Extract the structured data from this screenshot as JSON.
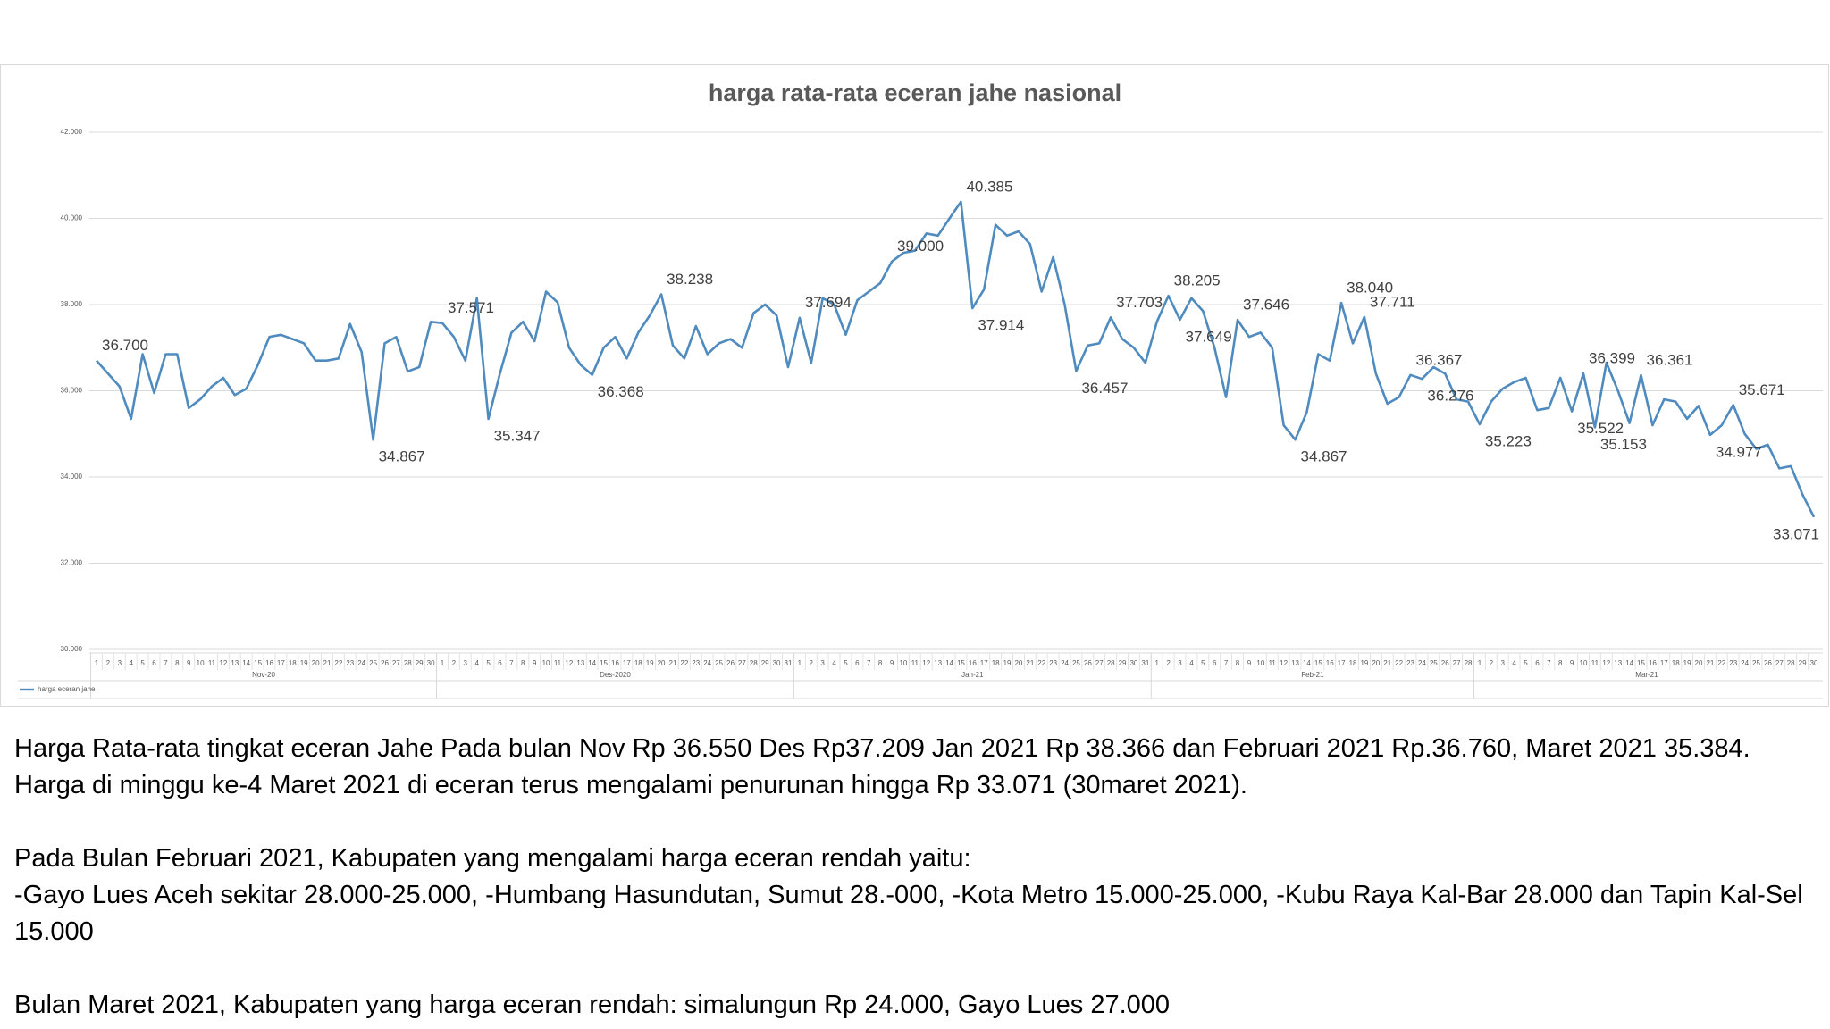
{
  "chart_data": {
    "type": "line",
    "title": "harga rata-rata eceran jahe nasional",
    "categories": [
      "1",
      "2",
      "3",
      "4",
      "5",
      "6",
      "7",
      "8",
      "9",
      "10",
      "11",
      "12",
      "13",
      "14",
      "15",
      "16",
      "17",
      "18",
      "19",
      "20",
      "21",
      "22",
      "23",
      "24",
      "25",
      "26",
      "27",
      "28",
      "29",
      "30",
      "1",
      "2",
      "3",
      "4",
      "5",
      "6",
      "7",
      "8",
      "9",
      "10",
      "11",
      "12",
      "13",
      "14",
      "15",
      "16",
      "17",
      "18",
      "19",
      "20",
      "21",
      "22",
      "23",
      "24",
      "25",
      "26",
      "27",
      "28",
      "29",
      "30",
      "31",
      "1",
      "2",
      "3",
      "4",
      "5",
      "6",
      "7",
      "8",
      "9",
      "10",
      "11",
      "12",
      "13",
      "14",
      "15",
      "16",
      "17",
      "18",
      "19",
      "20",
      "21",
      "22",
      "23",
      "24",
      "25",
      "26",
      "27",
      "28",
      "29",
      "30",
      "31",
      "1",
      "2",
      "3",
      "4",
      "5",
      "6",
      "7",
      "8",
      "9",
      "10",
      "11",
      "12",
      "13",
      "14",
      "15",
      "16",
      "17",
      "18",
      "19",
      "20",
      "21",
      "22",
      "23",
      "24",
      "25",
      "26",
      "27",
      "28",
      "1",
      "2",
      "3",
      "4",
      "5",
      "6",
      "7",
      "8",
      "9",
      "10",
      "11",
      "12",
      "13",
      "14",
      "15",
      "16",
      "17",
      "18",
      "19",
      "20",
      "21",
      "22",
      "23",
      "24",
      "25",
      "26",
      "27",
      "28",
      "29",
      "30"
    ],
    "groups": [
      "Nov-20",
      "Des-2020",
      "Jan-21",
      "Feb-21",
      "Mar-21"
    ],
    "series": [
      {
        "name": "harga eceran jahe",
        "color": "#4f8bbf",
        "values": [
          36700,
          36400,
          36100,
          35350,
          36850,
          35950,
          36850,
          36850,
          35600,
          35800,
          36100,
          36300,
          35900,
          36050,
          36600,
          37250,
          37300,
          37200,
          37100,
          36700,
          36700,
          36750,
          37550,
          36900,
          34867,
          37100,
          37250,
          36450,
          36550,
          37600,
          37571,
          37250,
          36700,
          38150,
          35347,
          36400,
          37350,
          37600,
          37150,
          38300,
          38050,
          37000,
          36600,
          36368,
          37000,
          37250,
          36750,
          37350,
          37750,
          38238,
          37050,
          36750,
          37500,
          36850,
          37100,
          37200,
          37000,
          37800,
          38000,
          37750,
          36550,
          37694,
          36650,
          38150,
          38000,
          37300,
          38100,
          38300,
          38500,
          39000,
          39200,
          39250,
          39650,
          39600,
          40000,
          40385,
          37914,
          38350,
          39850,
          39600,
          39700,
          39400,
          38300,
          39100,
          38000,
          36457,
          37050,
          37100,
          37703,
          37200,
          37000,
          36650,
          37600,
          38205,
          37649,
          38150,
          37850,
          37000,
          35850,
          37646,
          37250,
          37350,
          37000,
          35200,
          34867,
          35500,
          36850,
          36700,
          38040,
          37100,
          37711,
          36400,
          35700,
          35850,
          36367,
          36276,
          36550,
          36400,
          35800,
          35750,
          35223,
          35750,
          36050,
          36200,
          36300,
          35550,
          35600,
          36300,
          35522,
          36399,
          35153,
          36650,
          36000,
          35250,
          36361,
          35200,
          35800,
          35750,
          35350,
          35650,
          34977,
          35200,
          35671,
          35000,
          34650,
          34750,
          34200,
          34250,
          33600,
          33071
        ],
        "value_labels": [
          "36.700",
          null,
          null,
          null,
          null,
          null,
          null,
          null,
          null,
          null,
          null,
          null,
          null,
          null,
          null,
          null,
          null,
          null,
          null,
          null,
          null,
          null,
          null,
          null,
          "34.867",
          null,
          null,
          null,
          null,
          null,
          "37.571",
          null,
          null,
          null,
          "35.347",
          null,
          null,
          null,
          null,
          null,
          null,
          null,
          null,
          "36.368",
          null,
          null,
          null,
          null,
          null,
          "38.238",
          null,
          null,
          null,
          null,
          null,
          null,
          null,
          null,
          null,
          null,
          null,
          "37.694",
          null,
          null,
          null,
          null,
          null,
          null,
          null,
          "39.000",
          null,
          null,
          null,
          null,
          null,
          "40.385",
          "37.914",
          null,
          null,
          null,
          null,
          null,
          null,
          null,
          null,
          "36.457",
          null,
          null,
          "37.703",
          null,
          null,
          null,
          null,
          "38.205",
          "37.649",
          null,
          null,
          null,
          null,
          "37.646",
          null,
          null,
          null,
          null,
          "34.867",
          null,
          null,
          null,
          "38.040",
          null,
          "37.711",
          null,
          null,
          null,
          "36.367",
          "36.276",
          null,
          null,
          null,
          null,
          "35.223",
          null,
          null,
          null,
          null,
          null,
          null,
          null,
          "35.522",
          "36.399",
          "35.153",
          null,
          null,
          null,
          "36.361",
          null,
          null,
          null,
          null,
          null,
          "34.977",
          null,
          "35.671",
          null,
          null,
          null,
          null,
          null,
          null,
          "33.071"
        ]
      }
    ],
    "ylim": [
      30000,
      42000
    ],
    "yticks": [
      {
        "value": 30000,
        "label": "30.000"
      },
      {
        "value": 32000,
        "label": "32.000"
      },
      {
        "value": 34000,
        "label": "34.000"
      },
      {
        "value": 36000,
        "label": "36.000"
      },
      {
        "value": 38000,
        "label": "38.000"
      },
      {
        "value": 40000,
        "label": "40.000"
      },
      {
        "value": 42000,
        "label": "42.000"
      }
    ],
    "grid": true,
    "legend": "bottom"
  },
  "text": {
    "paragraphs": [
      "Harga Rata-rata tingkat eceran Jahe Pada bulan Nov Rp 36.550 Des Rp37.209 Jan 2021 Rp 38.366 dan Februari 2021 Rp.36.760, Maret 2021 35.384. Harga di minggu ke-4 Maret 2021 di eceran terus mengalami penurunan hingga Rp 33.071 (30maret 2021).",
      "Pada Bulan Februari 2021, Kabupaten yang mengalami harga eceran rendah yaitu:",
      "-Gayo Lues Aceh sekitar 28.000-25.000, -Humbang Hasundutan, Sumut 28.-000, -Kota Metro 15.000-25.000, -Kubu Raya Kal-Bar 28.000 dan Tapin Kal-Sel 15.000",
      "Bulan Maret 2021, Kabupaten yang harga eceran rendah: simalungun Rp 24.000, Gayo Lues 27.000"
    ]
  }
}
